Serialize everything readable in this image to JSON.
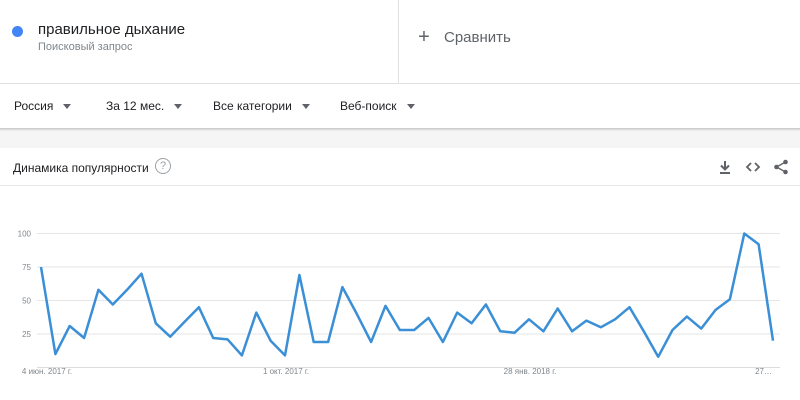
{
  "term": {
    "title": "правильное дыхание",
    "subtitle": "Поисковый запрос",
    "color": "#4285f4"
  },
  "compare": {
    "icon": "plus-icon",
    "label": "Сравнить"
  },
  "filters": [
    {
      "label": "Россия"
    },
    {
      "label": "За 12 мес."
    },
    {
      "label": "Все категории"
    },
    {
      "label": "Веб-поиск"
    }
  ],
  "card": {
    "title": "Динамика популярности",
    "help_icon": "help-icon",
    "help_glyph": "?",
    "actions": [
      "download-icon",
      "embed-icon",
      "share-icon"
    ]
  },
  "chart_data": {
    "type": "line",
    "ylim": [
      0,
      100
    ],
    "yticks": [
      "25",
      "50",
      "75",
      "100"
    ],
    "xtick_labels": [
      "4 июн. 2017 г.",
      "1 окт. 2017 г.",
      "28 янв. 2018 г.",
      "27…"
    ],
    "line_color": "#3a8fd6",
    "series": [
      {
        "values": [
          75,
          10,
          31,
          22,
          58,
          47,
          58,
          70,
          33,
          23,
          34,
          45,
          22,
          21,
          9,
          41,
          20,
          9,
          69,
          19,
          19,
          60,
          40,
          19,
          46,
          28,
          28,
          37,
          19,
          41,
          33,
          47,
          27,
          26,
          36,
          27,
          44,
          27,
          35,
          30,
          36,
          45,
          27,
          8,
          28,
          38,
          29,
          43,
          51,
          100,
          92,
          20
        ]
      }
    ]
  }
}
